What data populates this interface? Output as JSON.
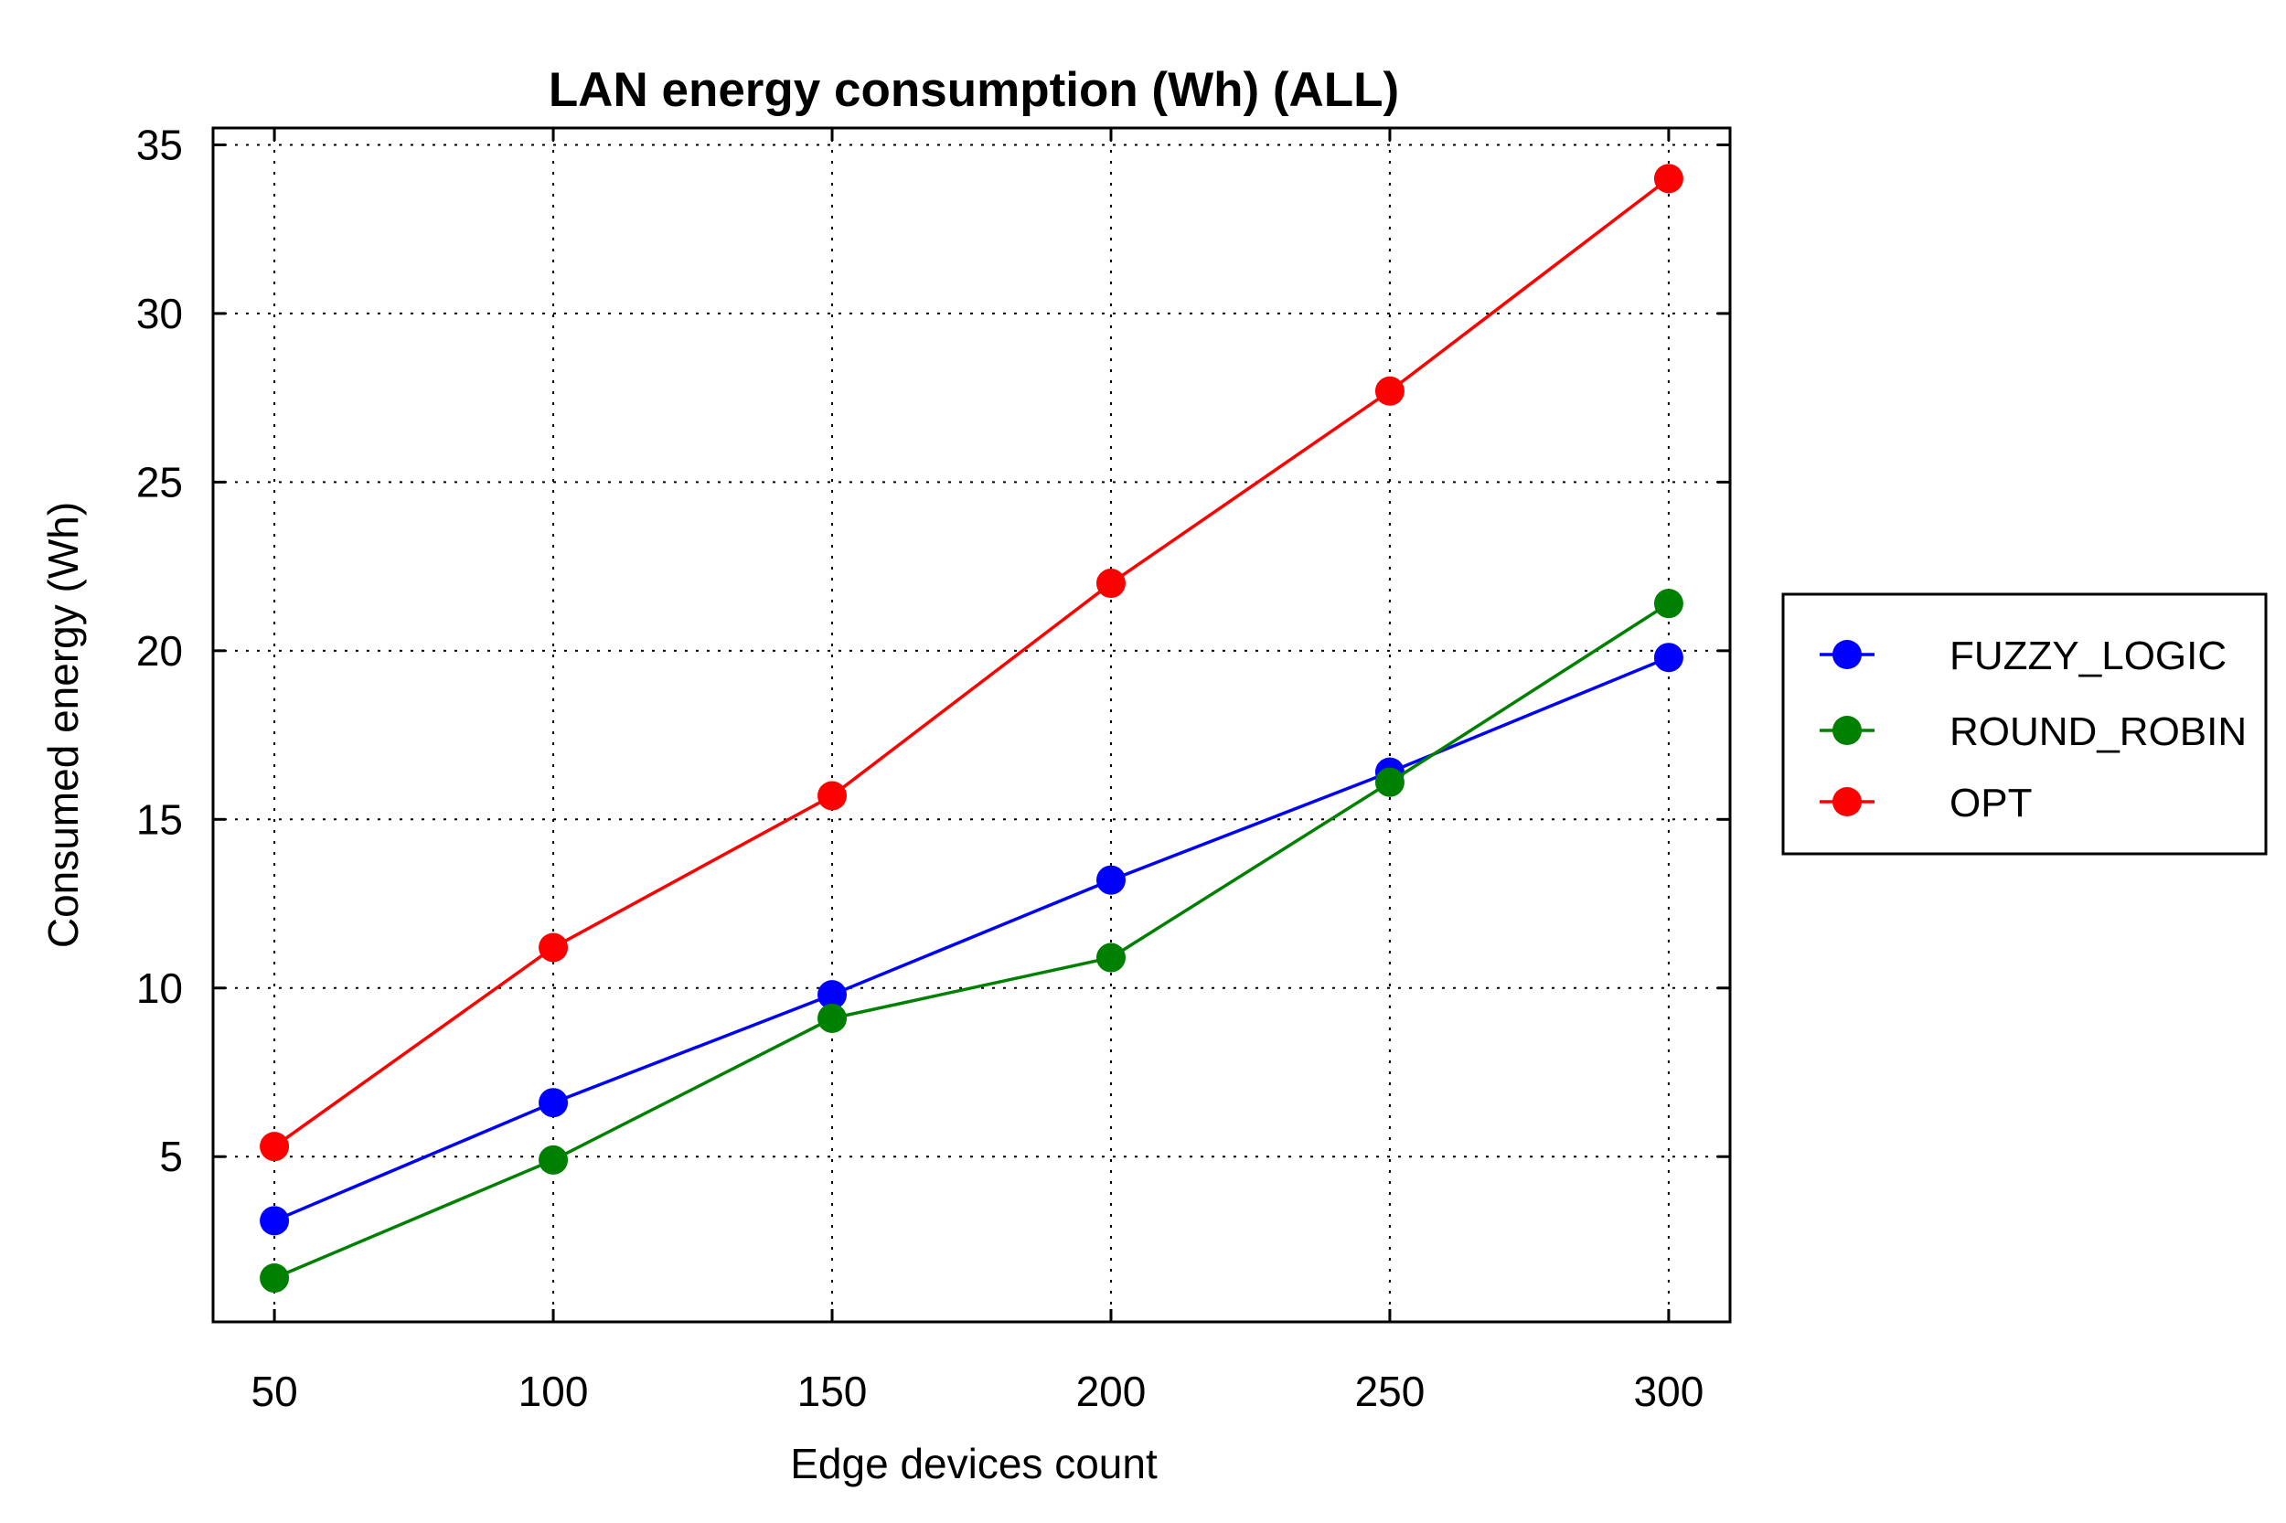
{
  "chart_data": {
    "type": "line",
    "title": "LAN energy consumption (Wh) (ALL)",
    "xlabel": "Edge devices count",
    "ylabel": "Consumed energy (Wh)",
    "x": [
      50,
      100,
      150,
      200,
      250,
      300
    ],
    "x_ticks": [
      "50",
      "100",
      "150",
      "200",
      "250",
      "300"
    ],
    "xlim": [
      39,
      311
    ],
    "ylim": [
      0.1,
      35.5
    ],
    "y_ticks": [
      "5",
      "10",
      "15",
      "20",
      "25",
      "30",
      "35"
    ],
    "grid": true,
    "legend_position": "right-outside",
    "series": [
      {
        "name": "FUZZY_LOGIC",
        "color": "#0000ff",
        "values": [
          3.1,
          6.6,
          9.8,
          13.2,
          16.4,
          19.8
        ]
      },
      {
        "name": " ROUND_ROBIN",
        "color": "#008000",
        "values": [
          1.4,
          4.9,
          9.1,
          10.9,
          16.1,
          21.4
        ]
      },
      {
        "name": "OPT",
        "color": "#ff0000",
        "values": [
          5.3,
          11.2,
          15.7,
          22.0,
          27.7,
          34.0
        ]
      }
    ]
  }
}
